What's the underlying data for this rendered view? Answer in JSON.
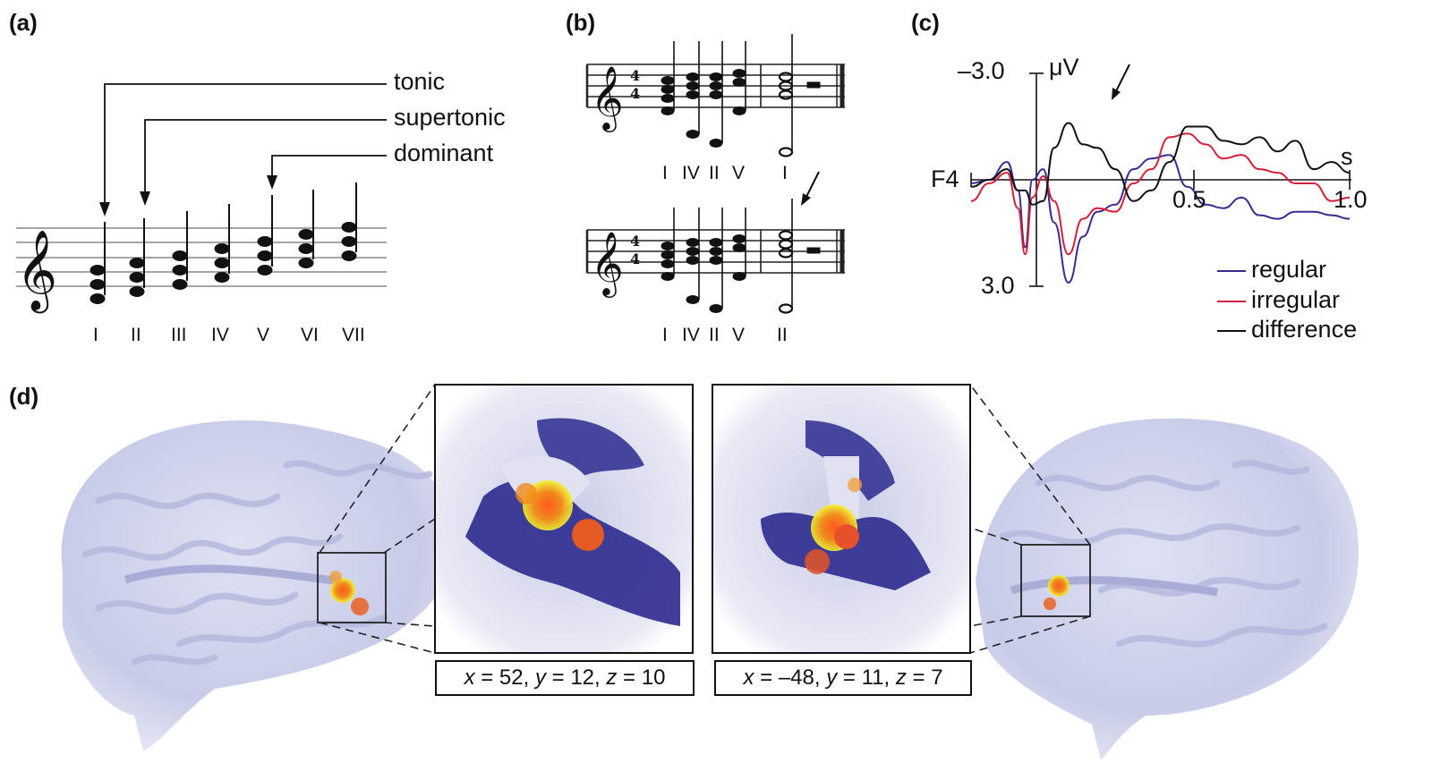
{
  "panels": {
    "a": {
      "label": "(a)",
      "annotations": [
        "tonic",
        "supertonic",
        "dominant"
      ],
      "degrees": [
        "I",
        "II",
        "III",
        "IV",
        "V",
        "VI",
        "VII"
      ]
    },
    "b": {
      "label": "(b)",
      "time_signature": "4 4",
      "sequence_top": [
        "I",
        "IV",
        "II",
        "V",
        "I"
      ],
      "sequence_bottom": [
        "I",
        "IV",
        "II",
        "V",
        "II"
      ]
    },
    "c": {
      "label": "(c)",
      "y_top_label": "–3.0",
      "y_unit": "μV",
      "y_bottom_label": "3.0",
      "channel": "F4",
      "x_mid_label": "0.5",
      "x_end_label": "1.0",
      "x_unit": "s",
      "legend": [
        {
          "name": "regular",
          "color": "#3b2a8f"
        },
        {
          "name": "irregular",
          "color": "#d6203a"
        },
        {
          "name": "difference",
          "color": "#111111"
        }
      ]
    },
    "d": {
      "label": "(d)",
      "coord_right_hemisphere": {
        "x_label": "x",
        "x_val": "52",
        "y_label": "y",
        "y_val": "12",
        "z_label": "z",
        "z_val": "10"
      },
      "coord_left_hemisphere": {
        "x_label": "x",
        "x_val": "–48",
        "y_label": "y",
        "y_val": "11",
        "z_label": "z",
        "z_val": "7"
      }
    }
  },
  "chart_data": {
    "type": "line",
    "title": "",
    "xlabel": "s",
    "ylabel": "μV",
    "xlim": [
      -0.05,
      1.0
    ],
    "ylim": [
      -3.0,
      3.0
    ],
    "y_inverted": true,
    "series": [
      {
        "name": "regular",
        "x": [
          -0.05,
          0.0,
          0.05,
          0.08,
          0.1,
          0.12,
          0.15,
          0.18,
          0.22,
          0.26,
          0.3,
          0.35,
          0.4,
          0.45,
          0.5,
          0.55,
          0.6,
          0.65,
          0.7,
          0.75,
          0.8,
          0.85,
          0.9,
          0.95,
          1.0
        ],
        "values": [
          0.1,
          0.0,
          -0.5,
          0.3,
          1.9,
          0.0,
          -0.3,
          1.2,
          2.9,
          1.6,
          0.9,
          0.7,
          -0.3,
          -0.6,
          -0.7,
          0.2,
          0.7,
          0.8,
          0.5,
          1.0,
          1.1,
          0.9,
          0.9,
          1.0,
          1.1
        ]
      },
      {
        "name": "irregular",
        "x": [
          -0.05,
          0.0,
          0.05,
          0.08,
          0.1,
          0.12,
          0.15,
          0.18,
          0.22,
          0.26,
          0.3,
          0.35,
          0.4,
          0.45,
          0.5,
          0.55,
          0.6,
          0.65,
          0.7,
          0.75,
          0.8,
          0.85,
          0.9,
          0.95,
          1.0
        ],
        "values": [
          0.6,
          0.1,
          -0.2,
          0.8,
          2.1,
          0.5,
          -0.1,
          0.6,
          2.1,
          1.1,
          0.8,
          0.9,
          0.1,
          -0.3,
          -1.2,
          -1.3,
          -1.0,
          -0.6,
          -0.7,
          -0.3,
          -0.2,
          0.1,
          0.1,
          0.6,
          0.5
        ]
      },
      {
        "name": "difference",
        "x": [
          -0.05,
          0.0,
          0.05,
          0.08,
          0.1,
          0.12,
          0.15,
          0.18,
          0.22,
          0.26,
          0.3,
          0.35,
          0.4,
          0.45,
          0.5,
          0.55,
          0.6,
          0.65,
          0.7,
          0.75,
          0.8,
          0.85,
          0.9,
          0.95,
          1.0
        ],
        "values": [
          0.2,
          0.0,
          -0.3,
          0.3,
          0.3,
          0.7,
          0.6,
          -0.9,
          -1.6,
          -1.0,
          -0.9,
          -0.3,
          0.6,
          0.3,
          -0.5,
          -1.5,
          -1.5,
          -1.1,
          -1.0,
          -1.2,
          -0.8,
          -1.1,
          -0.3,
          -0.5,
          -0.2
        ]
      }
    ]
  }
}
